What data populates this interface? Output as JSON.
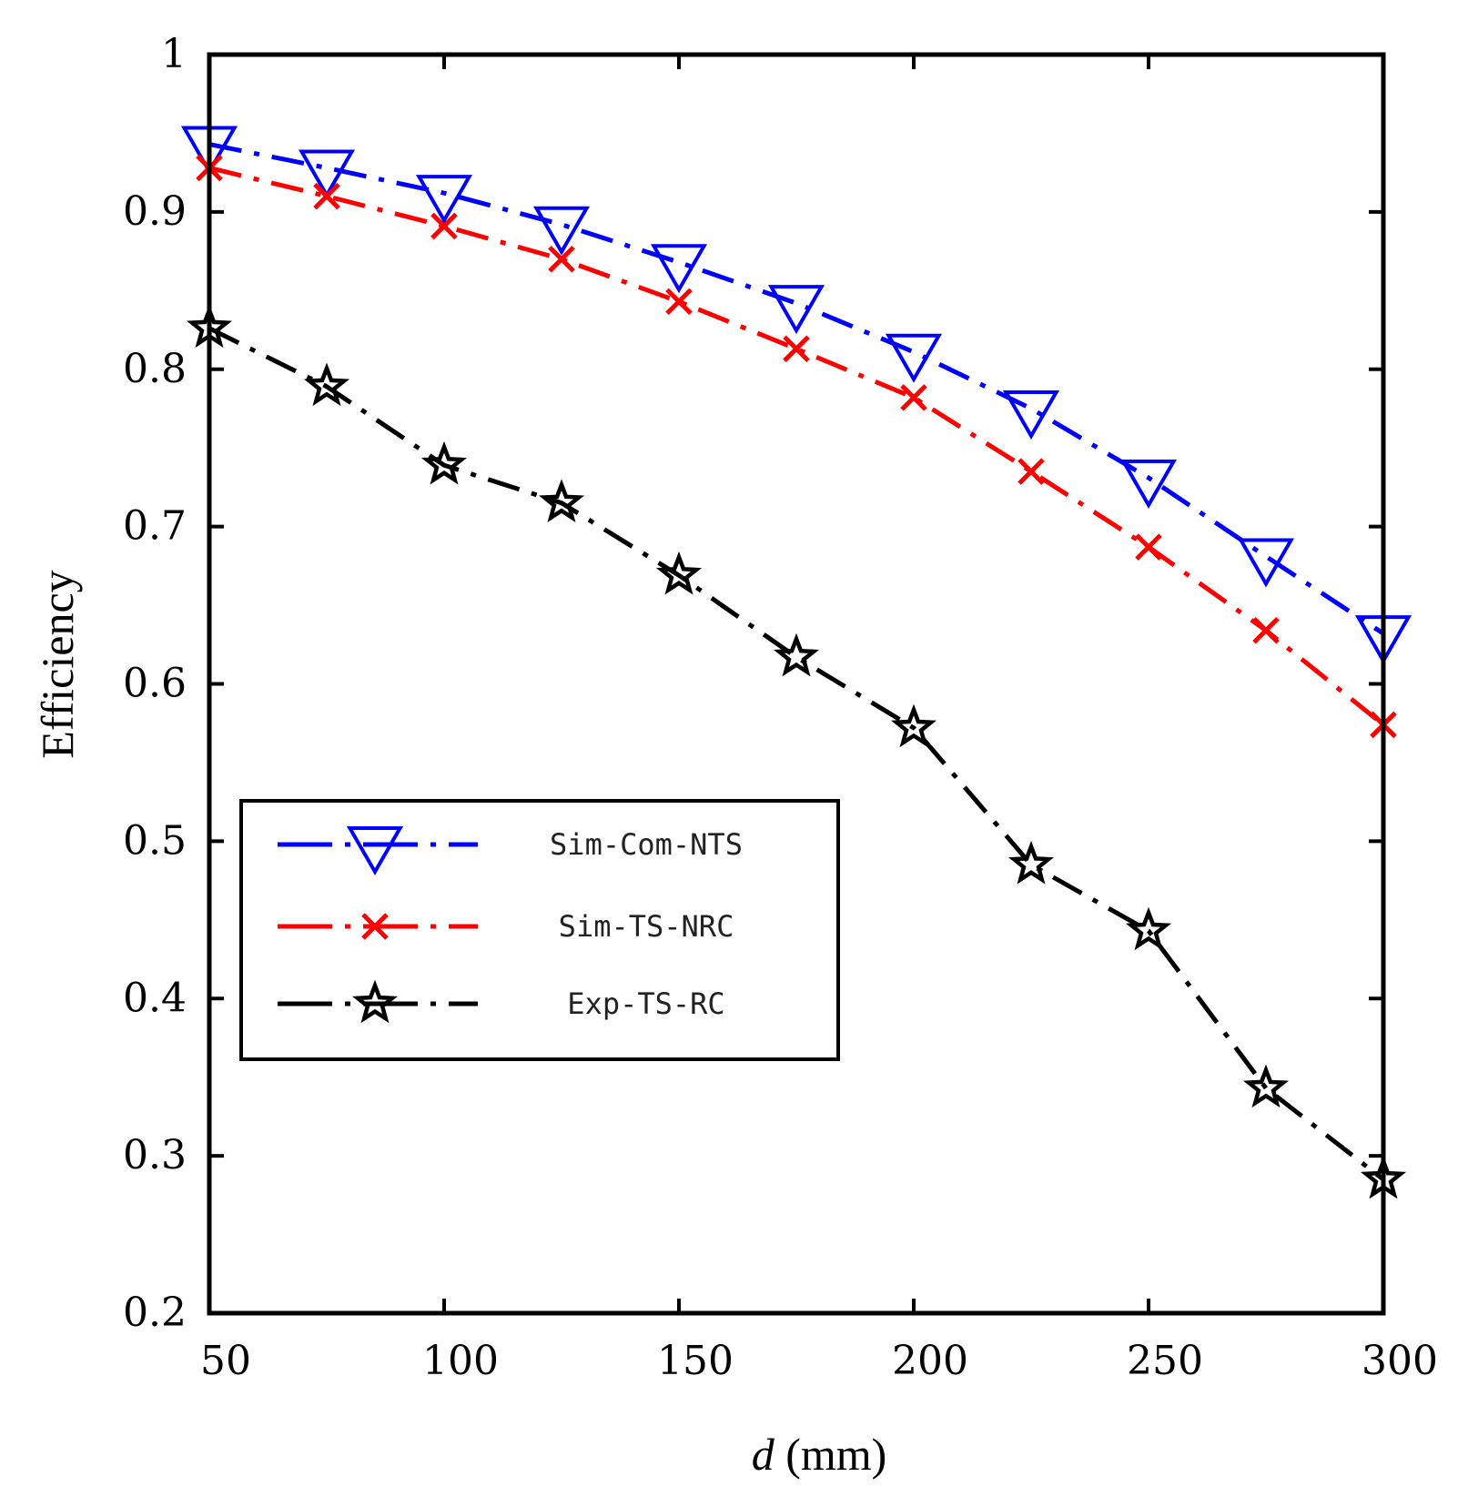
{
  "chart_data": {
    "type": "line",
    "title": "",
    "xlabel_italic": "d",
    "xlabel_unit": " (mm)",
    "ylabel": "Efficiency",
    "xlim": [
      50,
      300
    ],
    "ylim": [
      0.2,
      1
    ],
    "xticks": [
      50,
      100,
      150,
      200,
      250,
      300
    ],
    "yticks": [
      0.2,
      0.3,
      0.4,
      0.5,
      0.6,
      0.7,
      0.8,
      0.9,
      1
    ],
    "xtick_labels": [
      "50",
      "100",
      "150",
      "200",
      "250",
      "300"
    ],
    "ytick_labels": [
      "0.2",
      "0.3",
      "0.4",
      "0.5",
      "0.6",
      "0.7",
      "0.8",
      "0.9",
      "1"
    ],
    "grid": false,
    "legend_position": "center-left",
    "x": [
      50,
      75,
      100,
      125,
      150,
      175,
      200,
      225,
      250,
      275,
      300
    ],
    "series": [
      {
        "name": "Sim-Com-NTS",
        "color": "#0000ff",
        "marker": "triangle-down",
        "values": [
          0.943,
          0.928,
          0.912,
          0.892,
          0.868,
          0.842,
          0.811,
          0.775,
          0.731,
          0.681,
          0.632
        ]
      },
      {
        "name": "Sim-TS-NRC",
        "color": "#ff0000",
        "marker": "x",
        "values": [
          0.928,
          0.91,
          0.891,
          0.87,
          0.843,
          0.813,
          0.782,
          0.735,
          0.687,
          0.634,
          0.574
        ]
      },
      {
        "name": "Exp-TS-RC",
        "color": "#000000",
        "marker": "star",
        "values": [
          0.826,
          0.789,
          0.739,
          0.715,
          0.669,
          0.617,
          0.572,
          0.485,
          0.443,
          0.343,
          0.285
        ]
      }
    ]
  }
}
